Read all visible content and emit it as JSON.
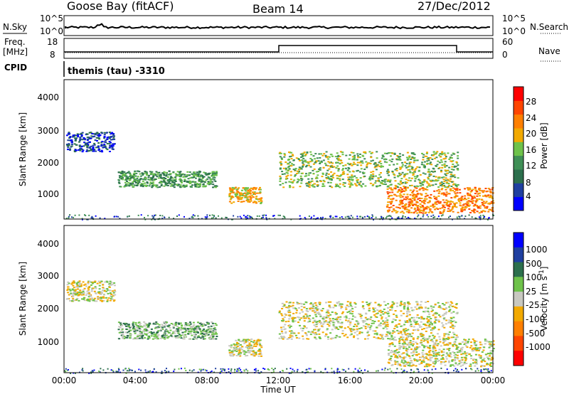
{
  "header": {
    "station": "Goose Bay (fitACF)",
    "beam": "Beam 14",
    "date": "27/Dec/2012"
  },
  "noise_panel": {
    "left_label": "N.Sky",
    "right_label": "N.Search",
    "left_ticks": [
      "10^5",
      "10^0"
    ],
    "right_ticks": [
      "10^5",
      "10^0"
    ]
  },
  "freq_panel": {
    "left_label_line1": "Freq.",
    "left_label_line2": "[MHz]",
    "right_label": "Nave",
    "left_ticks": [
      "18",
      "8"
    ],
    "right_ticks": [
      "60",
      "0"
    ],
    "cpid_label": "CPID",
    "cpid_value": "themis (tau) -3310"
  },
  "colors": {
    "power": [
      "#0000ff",
      "#1f3fa0",
      "#2c6f4d",
      "#3f8f56",
      "#6ec24a",
      "#f2a900",
      "#ff7f00",
      "#ff4500",
      "#ff0000"
    ],
    "velocity": [
      "#0000ff",
      "#1f3fa0",
      "#2c6f4d",
      "#6ec24a",
      "#c8c8c0",
      "#f2a900",
      "#ff7f00",
      "#ff4500",
      "#ff0000"
    ]
  },
  "chart_data": [
    {
      "type": "heatmap",
      "panel": "power",
      "ylabel": "Slant Range [km]",
      "yticks": [
        "1000",
        "2000",
        "3000",
        "4000"
      ],
      "colorbar_label": "Power [dB]",
      "colorbar_ticks": [
        "4",
        "8",
        "12",
        "16",
        "20",
        "24",
        "28"
      ],
      "ylim": [
        200,
        4500
      ],
      "regions": [
        {
          "t0": 0.1,
          "t1": 2.8,
          "r0": 2300,
          "r1": 2900,
          "level": 1
        },
        {
          "t0": 3.0,
          "t1": 8.5,
          "r0": 1200,
          "r1": 1700,
          "level": 3
        },
        {
          "t0": 9.2,
          "t1": 11.0,
          "r0": 700,
          "r1": 1200,
          "level": 5
        },
        {
          "t0": 12.0,
          "t1": 22.0,
          "r0": 1200,
          "r1": 2300,
          "level": 4
        },
        {
          "t0": 18.0,
          "t1": 24.0,
          "r0": 400,
          "r1": 1200,
          "level": 6
        }
      ]
    },
    {
      "type": "heatmap",
      "panel": "velocity",
      "xlabel": "Time UT",
      "ylabel": "Slant Range [km]",
      "xticks": [
        "00:00",
        "04:00",
        "08:00",
        "12:00",
        "16:00",
        "20:00",
        "00:00"
      ],
      "yticks": [
        "1000",
        "2000",
        "3000",
        "4000"
      ],
      "colorbar_label": "Velocity [m s",
      "colorbar_label_sup": "-1",
      "colorbar_label_end": "]",
      "colorbar_ticks": [
        "1000",
        "500",
        "100",
        "25",
        "-25",
        "-100",
        "-500",
        "-1000"
      ],
      "ylim": [
        200,
        4500
      ],
      "regions": [
        {
          "t0": 0.1,
          "t1": 2.8,
          "r0": 2300,
          "r1": 2900,
          "level": 4
        },
        {
          "t0": 3.0,
          "t1": 8.5,
          "r0": 1200,
          "r1": 1700,
          "level": 3
        },
        {
          "t0": 9.2,
          "t1": 11.0,
          "r0": 700,
          "r1": 1200,
          "level": 4
        },
        {
          "t0": 12.0,
          "t1": 22.0,
          "r0": 1200,
          "r1": 2300,
          "level": 4
        },
        {
          "t0": 18.0,
          "t1": 24.0,
          "r0": 400,
          "r1": 1200,
          "level": 4
        }
      ]
    }
  ]
}
